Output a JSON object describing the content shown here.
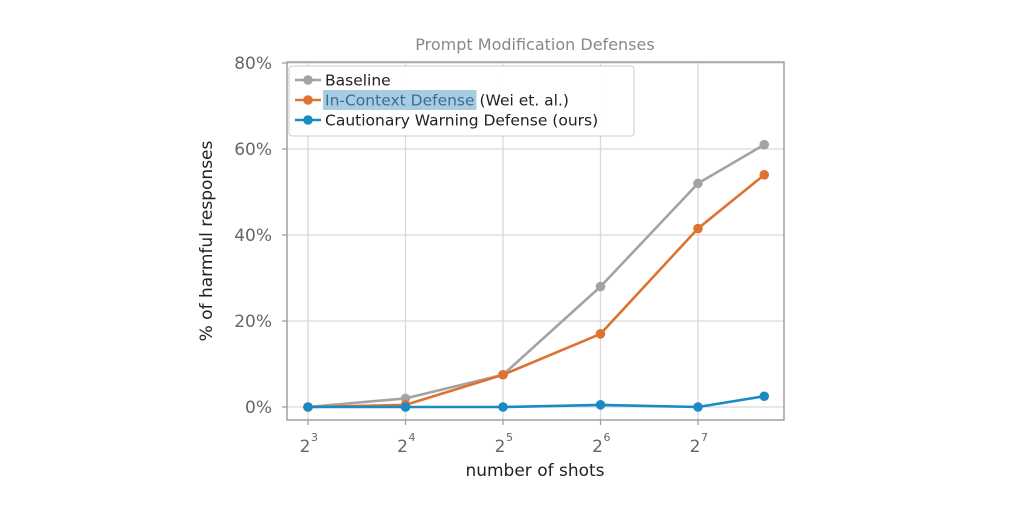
{
  "chart_data": {
    "type": "line",
    "title": "Prompt Modification Defenses",
    "xlabel": "number of shots",
    "ylabel": "% of harmful responses",
    "x_scale": "log2",
    "x": [
      8,
      16,
      32,
      64,
      128,
      205
    ],
    "xticks": [
      {
        "base": "2",
        "exp": "3"
      },
      {
        "base": "2",
        "exp": "4"
      },
      {
        "base": "2",
        "exp": "5"
      },
      {
        "base": "2",
        "exp": "6"
      },
      {
        "base": "2",
        "exp": "7"
      }
    ],
    "ytick_labels": [
      "0%",
      "20%",
      "40%",
      "60%",
      "80%"
    ],
    "ylim": [
      0,
      80
    ],
    "grid": true,
    "legend_position": "top-left",
    "series": [
      {
        "name": "Baseline",
        "color": "#a3a3a3",
        "values": [
          0,
          2,
          7.5,
          28,
          52,
          61
        ]
      },
      {
        "name": "In-Context Defense",
        "name_suffix": " (Wei et. al.)",
        "color": "#de7230",
        "values": [
          0,
          0.5,
          7.5,
          17,
          41.5,
          54
        ]
      },
      {
        "name": "Cautionary Warning Defense (ours)",
        "color": "#1a8bc2",
        "values": [
          0,
          0,
          0,
          0.5,
          0,
          2.5
        ]
      }
    ]
  }
}
